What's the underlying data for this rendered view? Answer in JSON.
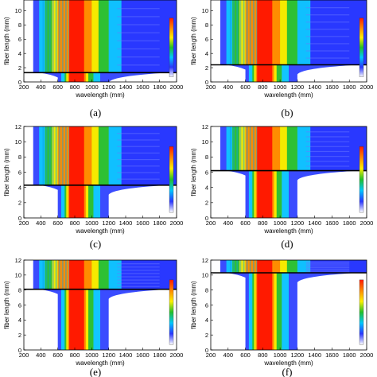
{
  "colors": {
    "background": "#ffffff",
    "cutoff_line": "#000000",
    "colormap": [
      "#ffffff",
      "#2a36ff",
      "#00c8ff",
      "#22c02a",
      "#fff200",
      "#ff8a00",
      "#ff1a00"
    ]
  },
  "chart_data": [
    {
      "type": "heatmap",
      "caption": "(a)",
      "title": "",
      "xlabel": "wavelength (mm)",
      "ylabel": "fiber length (mm)",
      "xlim": [
        200,
        2000
      ],
      "ylim": [
        0,
        11.5
      ],
      "x_ticks": [
        "200",
        "400",
        "600",
        "800",
        "1000",
        "1200",
        "1400",
        "1600",
        "1800",
        "2000"
      ],
      "y_ticks": [
        "0",
        "2",
        "4",
        "6",
        "8",
        "10"
      ],
      "cutoff_length": 1.3,
      "legend": "colorbar right",
      "grid": false
    },
    {
      "type": "heatmap",
      "caption": "(b)",
      "title": "",
      "xlabel": "wavelength (mm)",
      "ylabel": "fiber length (mm)",
      "xlim": [
        200,
        2000
      ],
      "ylim": [
        0,
        11.5
      ],
      "x_ticks": [
        "200",
        "400",
        "600",
        "800",
        "1000",
        "1200",
        "1400",
        "1600",
        "1800",
        "2000"
      ],
      "y_ticks": [
        "0",
        "2",
        "4",
        "6",
        "8",
        "10"
      ],
      "cutoff_length": 2.4,
      "legend": "colorbar right",
      "grid": false
    },
    {
      "type": "heatmap",
      "caption": "(c)",
      "title": "",
      "xlabel": "wavelength (mm)",
      "ylabel": "fiber length (mm)",
      "xlim": [
        200,
        2000
      ],
      "ylim": [
        0,
        12
      ],
      "x_ticks": [
        "200",
        "400",
        "600",
        "800",
        "1000",
        "1200",
        "1400",
        "1600",
        "1800",
        "2000"
      ],
      "y_ticks": [
        "0",
        "2",
        "4",
        "6",
        "8",
        "10",
        "12"
      ],
      "cutoff_length": 4.3,
      "legend": "colorbar right",
      "grid": false
    },
    {
      "type": "heatmap",
      "caption": "(d)",
      "title": "",
      "xlabel": "wavelength (mm)",
      "ylabel": "fiber length (mm)",
      "xlim": [
        200,
        2000
      ],
      "ylim": [
        0,
        12
      ],
      "x_ticks": [
        "200",
        "400",
        "600",
        "800",
        "1000",
        "1200",
        "1400",
        "1600",
        "1800",
        "2000"
      ],
      "y_ticks": [
        "0",
        "2",
        "4",
        "6",
        "8",
        "10",
        "12"
      ],
      "cutoff_length": 6.2,
      "legend": "colorbar right",
      "grid": false
    },
    {
      "type": "heatmap",
      "caption": "(e)",
      "title": "",
      "xlabel": "wavelength (mm)",
      "ylabel": "fiber length (mm)",
      "xlim": [
        200,
        2000
      ],
      "ylim": [
        0,
        12
      ],
      "x_ticks": [
        "200",
        "400",
        "600",
        "800",
        "1000",
        "1200",
        "1400",
        "1600",
        "1800",
        "2000"
      ],
      "y_ticks": [
        "0",
        "2",
        "4",
        "6",
        "8",
        "10",
        "12"
      ],
      "cutoff_length": 8.1,
      "legend": "colorbar right",
      "grid": false
    },
    {
      "type": "heatmap",
      "caption": "(f)",
      "title": "",
      "xlabel": "wavelength (mm)",
      "ylabel": "fiber length (mm)",
      "xlim": [
        200,
        2000
      ],
      "ylim": [
        0,
        12
      ],
      "x_ticks": [
        "200",
        "400",
        "600",
        "800",
        "1000",
        "1200",
        "1400",
        "1600",
        "1800",
        "2000"
      ],
      "y_ticks": [
        "0",
        "2",
        "4",
        "6",
        "8",
        "10",
        "12"
      ],
      "cutoff_length": 10.3,
      "legend": "colorbar right",
      "grid": false
    }
  ]
}
